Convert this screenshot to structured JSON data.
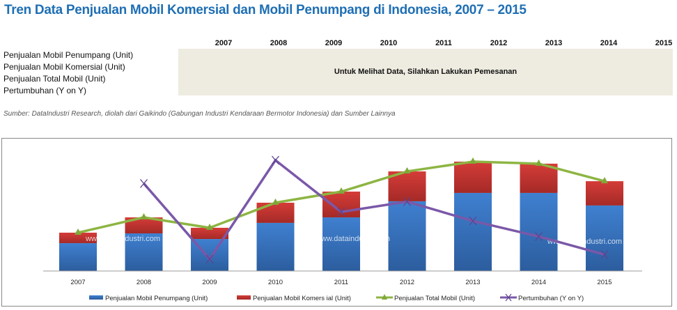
{
  "title": "Tren Data Penjualan Mobil Komersial dan Mobil Penumpang di Indonesia, 2007 – 2015",
  "table": {
    "years": [
      "2007",
      "2008",
      "2009",
      "2010",
      "2011",
      "2012",
      "2013",
      "2014",
      "2015"
    ],
    "rows": [
      "Penjualan Mobil Penumpang (Unit)",
      "Penjualan Mobil Komersial (Unit)",
      "Penjualan Total Mobil (Unit)",
      "Pertumbuhan (Y on Y)"
    ],
    "notice": "Untuk Melihat Data, Silahkan Lakukan Pemesanan"
  },
  "source": "Sumber: DataIndustri Research, diolah dari Gaikindo (Gabungan Industri Kendaraan Bermotor Indonesia) dan Sumber Lainnya",
  "watermark": "www.dataindustri.com",
  "chart_data": {
    "type": "bar",
    "stacked": true,
    "categories": [
      "2007",
      "2008",
      "2009",
      "2010",
      "2011",
      "2012",
      "2013",
      "2014",
      "2015"
    ],
    "series": [
      {
        "name": "Penjualan Mobil Penumpang (Unit)",
        "type": "bar",
        "color": "#3a78c4",
        "values": [
          313000,
          423000,
          360000,
          541000,
          603000,
          784000,
          878000,
          878000,
          737000
        ]
      },
      {
        "name": "Penjualan Mobil Komers ial (Unit)",
        "type": "bar",
        "color": "#cc3a36",
        "values": [
          118000,
          180000,
          126000,
          227000,
          290000,
          336000,
          352000,
          329000,
          273000
        ]
      },
      {
        "name": "Penjualan Total Mobil (Unit)",
        "type": "line",
        "marker": "triangle",
        "color": "#8db543",
        "values": [
          431000,
          603000,
          486000,
          768000,
          893000,
          1120000,
          1230000,
          1207000,
          1010000
        ]
      },
      {
        "name": "Pertumbuhan (Y on Y)",
        "type": "line",
        "marker": "x",
        "axis": "secondary",
        "color": "#7a58a8",
        "values": [
          null,
          39,
          -19.5,
          57,
          17,
          25,
          10,
          -2,
          -16
        ]
      }
    ],
    "ylim": [
      0,
      1520000
    ],
    "y2lim": [
      -28.7,
      75.9
    ],
    "grid": false,
    "legend": "bottom"
  }
}
